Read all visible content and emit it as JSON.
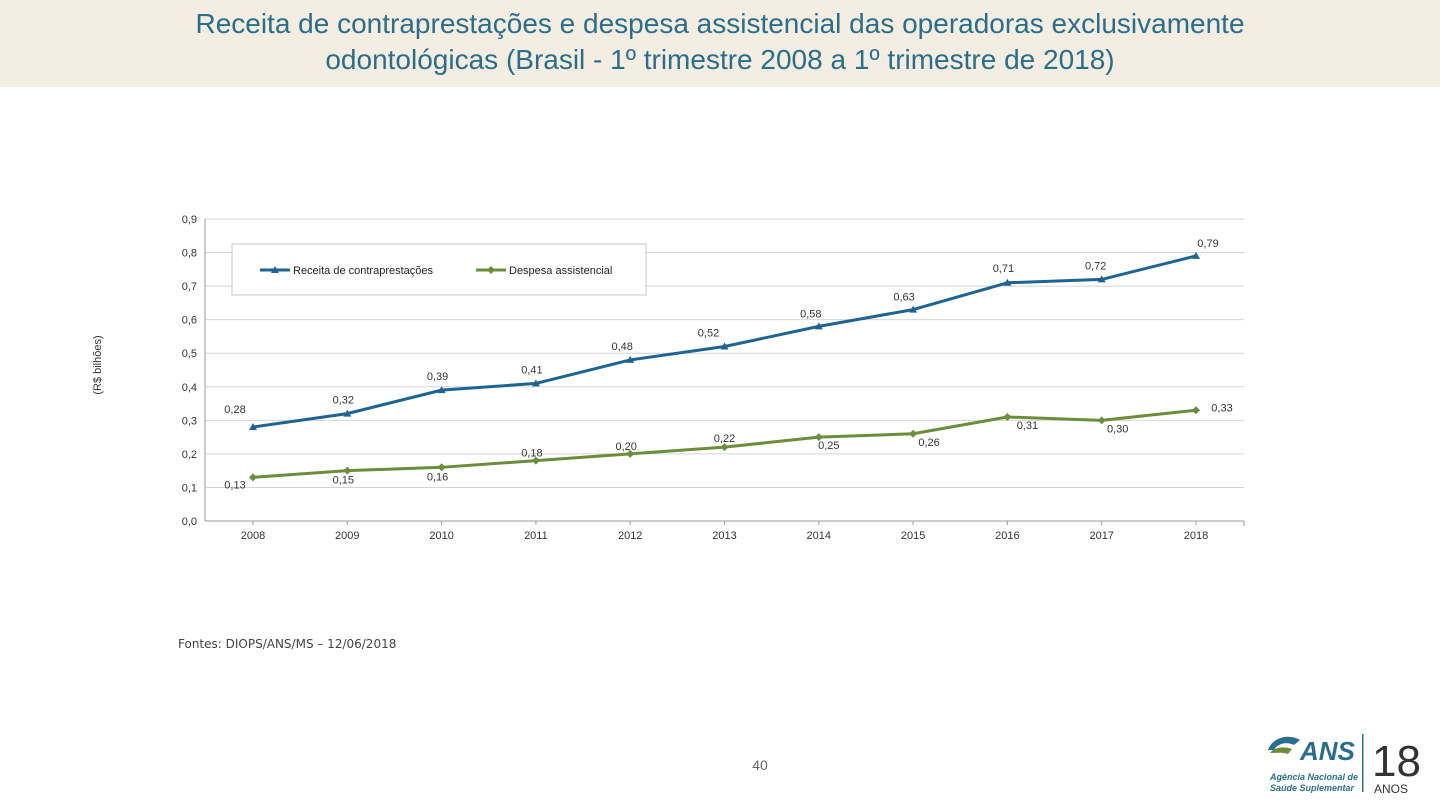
{
  "title": {
    "line1": "Receita de contraprestações e despesa assistencial das operadoras exclusivamente",
    "line2": "odontológicas (Brasil - 1º trimestre 2008 a 1º trimestre de 2018)"
  },
  "chart_data": {
    "type": "line",
    "title": "Receita de contraprestações e despesa assistencial das operadoras exclusivamente odontológicas (Brasil - 1º trimestre 2008 a 1º trimestre de 2018)",
    "xlabel": "",
    "ylabel": "(R$ bilhões)",
    "ylim": [
      0,
      0.9
    ],
    "y_ticks": [
      "0,0",
      "0,1",
      "0,2",
      "0,3",
      "0,4",
      "0,5",
      "0,6",
      "0,7",
      "0,8",
      "0,9"
    ],
    "categories": [
      "2008",
      "2009",
      "2010",
      "2011",
      "2012",
      "2013",
      "2014",
      "2015",
      "2016",
      "2017",
      "2018"
    ],
    "legend_position": "top-left",
    "grid": true,
    "series": [
      {
        "name": "Receita de contraprestações",
        "color": "#1f6391",
        "marker": "triangle",
        "values": [
          0.28,
          0.32,
          0.39,
          0.41,
          0.48,
          0.52,
          0.58,
          0.63,
          0.71,
          0.72,
          0.79
        ],
        "labels": [
          "0,28",
          "0,32",
          "0,39",
          "0,41",
          "0,48",
          "0,52",
          "0,58",
          "0,63",
          "0,71",
          "0,72",
          "0,79"
        ]
      },
      {
        "name": "Despesa assistencial",
        "color": "#6b8e3a",
        "marker": "diamond",
        "values": [
          0.13,
          0.15,
          0.16,
          0.18,
          0.2,
          0.22,
          0.25,
          0.26,
          0.31,
          0.3,
          0.33
        ],
        "labels": [
          "0,13",
          "0,15",
          "0,16",
          "0,18",
          "0,20",
          "0,22",
          "0,25",
          "0,26",
          "0,31",
          "0,30",
          "0,33"
        ]
      }
    ]
  },
  "source": "Fontes: DIOPS/ANS/MS – 12/06/2018",
  "page_number": "40",
  "logo": {
    "brand": "ANS",
    "line1": "Agência Nacional de",
    "line2": "Saúde Suplementar",
    "years": "18",
    "years_label": "ANOS"
  }
}
